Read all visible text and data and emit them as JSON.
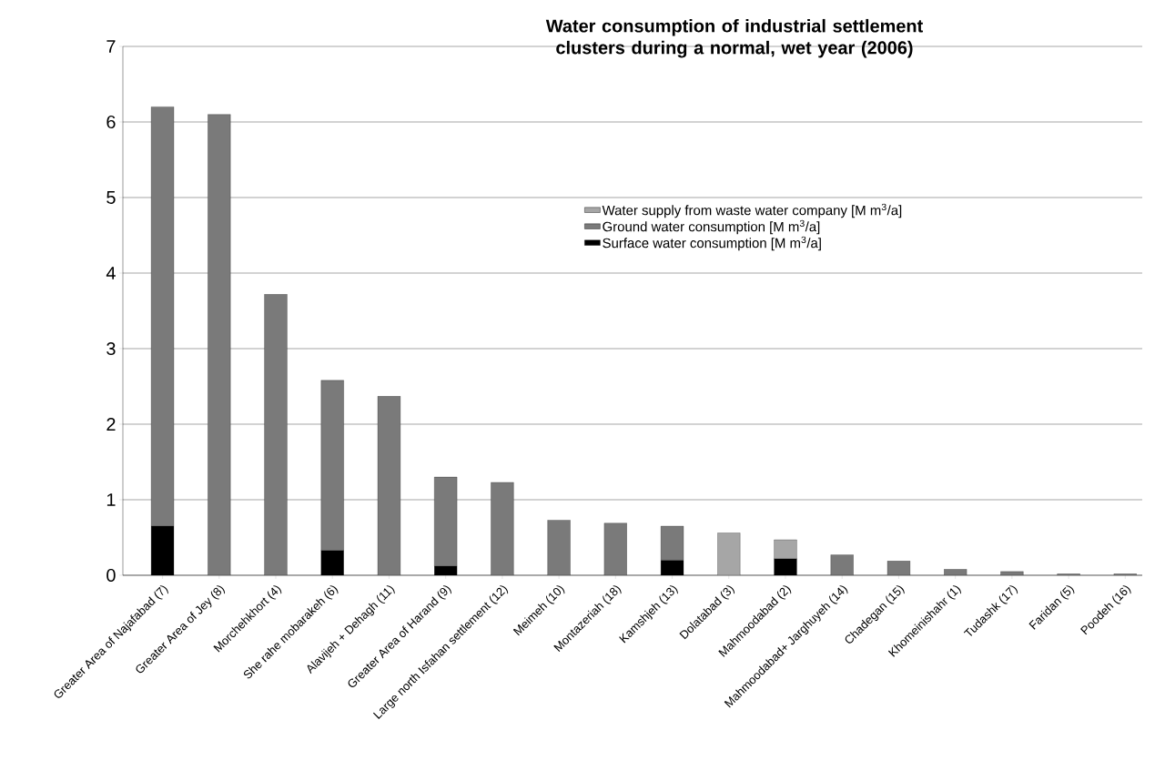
{
  "chart_data": {
    "type": "bar",
    "stacked": true,
    "title": "Water consumption of industrial settlement clusters during a normal, wet year (2006)",
    "categories": [
      "Greater Area of Najafabad (7)",
      "Greater Area of Jey (8)",
      "Morchehkhort (4)",
      "She rahe mobarakeh (6)",
      "Alavijeh + Dehagh (11)",
      "Greater Area of Harand (9)",
      "Large north Isfahan settlement (12)",
      "Meimeh (10)",
      "Montazeriah (18)",
      "Kamshjeh (13)",
      "Dolatabad (3)",
      "Mahmoodabad (2)",
      "Mahmoodabad+ Jarghuyeh (14)",
      "Chadegan (15)",
      "Khomeinishahr (1)",
      "Tudashk (17)",
      "Faridan (5)",
      "Poodeh (16)"
    ],
    "series": [
      {
        "name": "Surface water consumption [M m$^{3}$/a]",
        "color": "#000000",
        "values": [
          0.65,
          null,
          null,
          0.33,
          null,
          0.12,
          null,
          null,
          null,
          0.2,
          null,
          0.22,
          null,
          null,
          null,
          null,
          null,
          null
        ]
      },
      {
        "name": "Ground water consumption [M m$^{3}$/a]",
        "color": "#7a7a7a",
        "values": [
          5.55,
          6.1,
          3.72,
          2.25,
          2.37,
          1.18,
          1.23,
          0.73,
          0.69,
          0.45,
          null,
          null,
          0.27,
          0.19,
          0.08,
          0.05,
          0.02,
          0.02
        ]
      },
      {
        "name": "Water supply from waste water company [M m$^{3}$/a]",
        "color": "#a6a6a6",
        "values": [
          null,
          null,
          null,
          null,
          null,
          null,
          null,
          null,
          null,
          null,
          0.56,
          0.25,
          null,
          null,
          null,
          null,
          null,
          null
        ]
      }
    ],
    "ylim": [
      0,
      7
    ],
    "yticks": [
      0,
      1,
      2,
      3,
      4,
      5,
      6,
      7
    ],
    "grid": "y",
    "legend": "top right"
  }
}
